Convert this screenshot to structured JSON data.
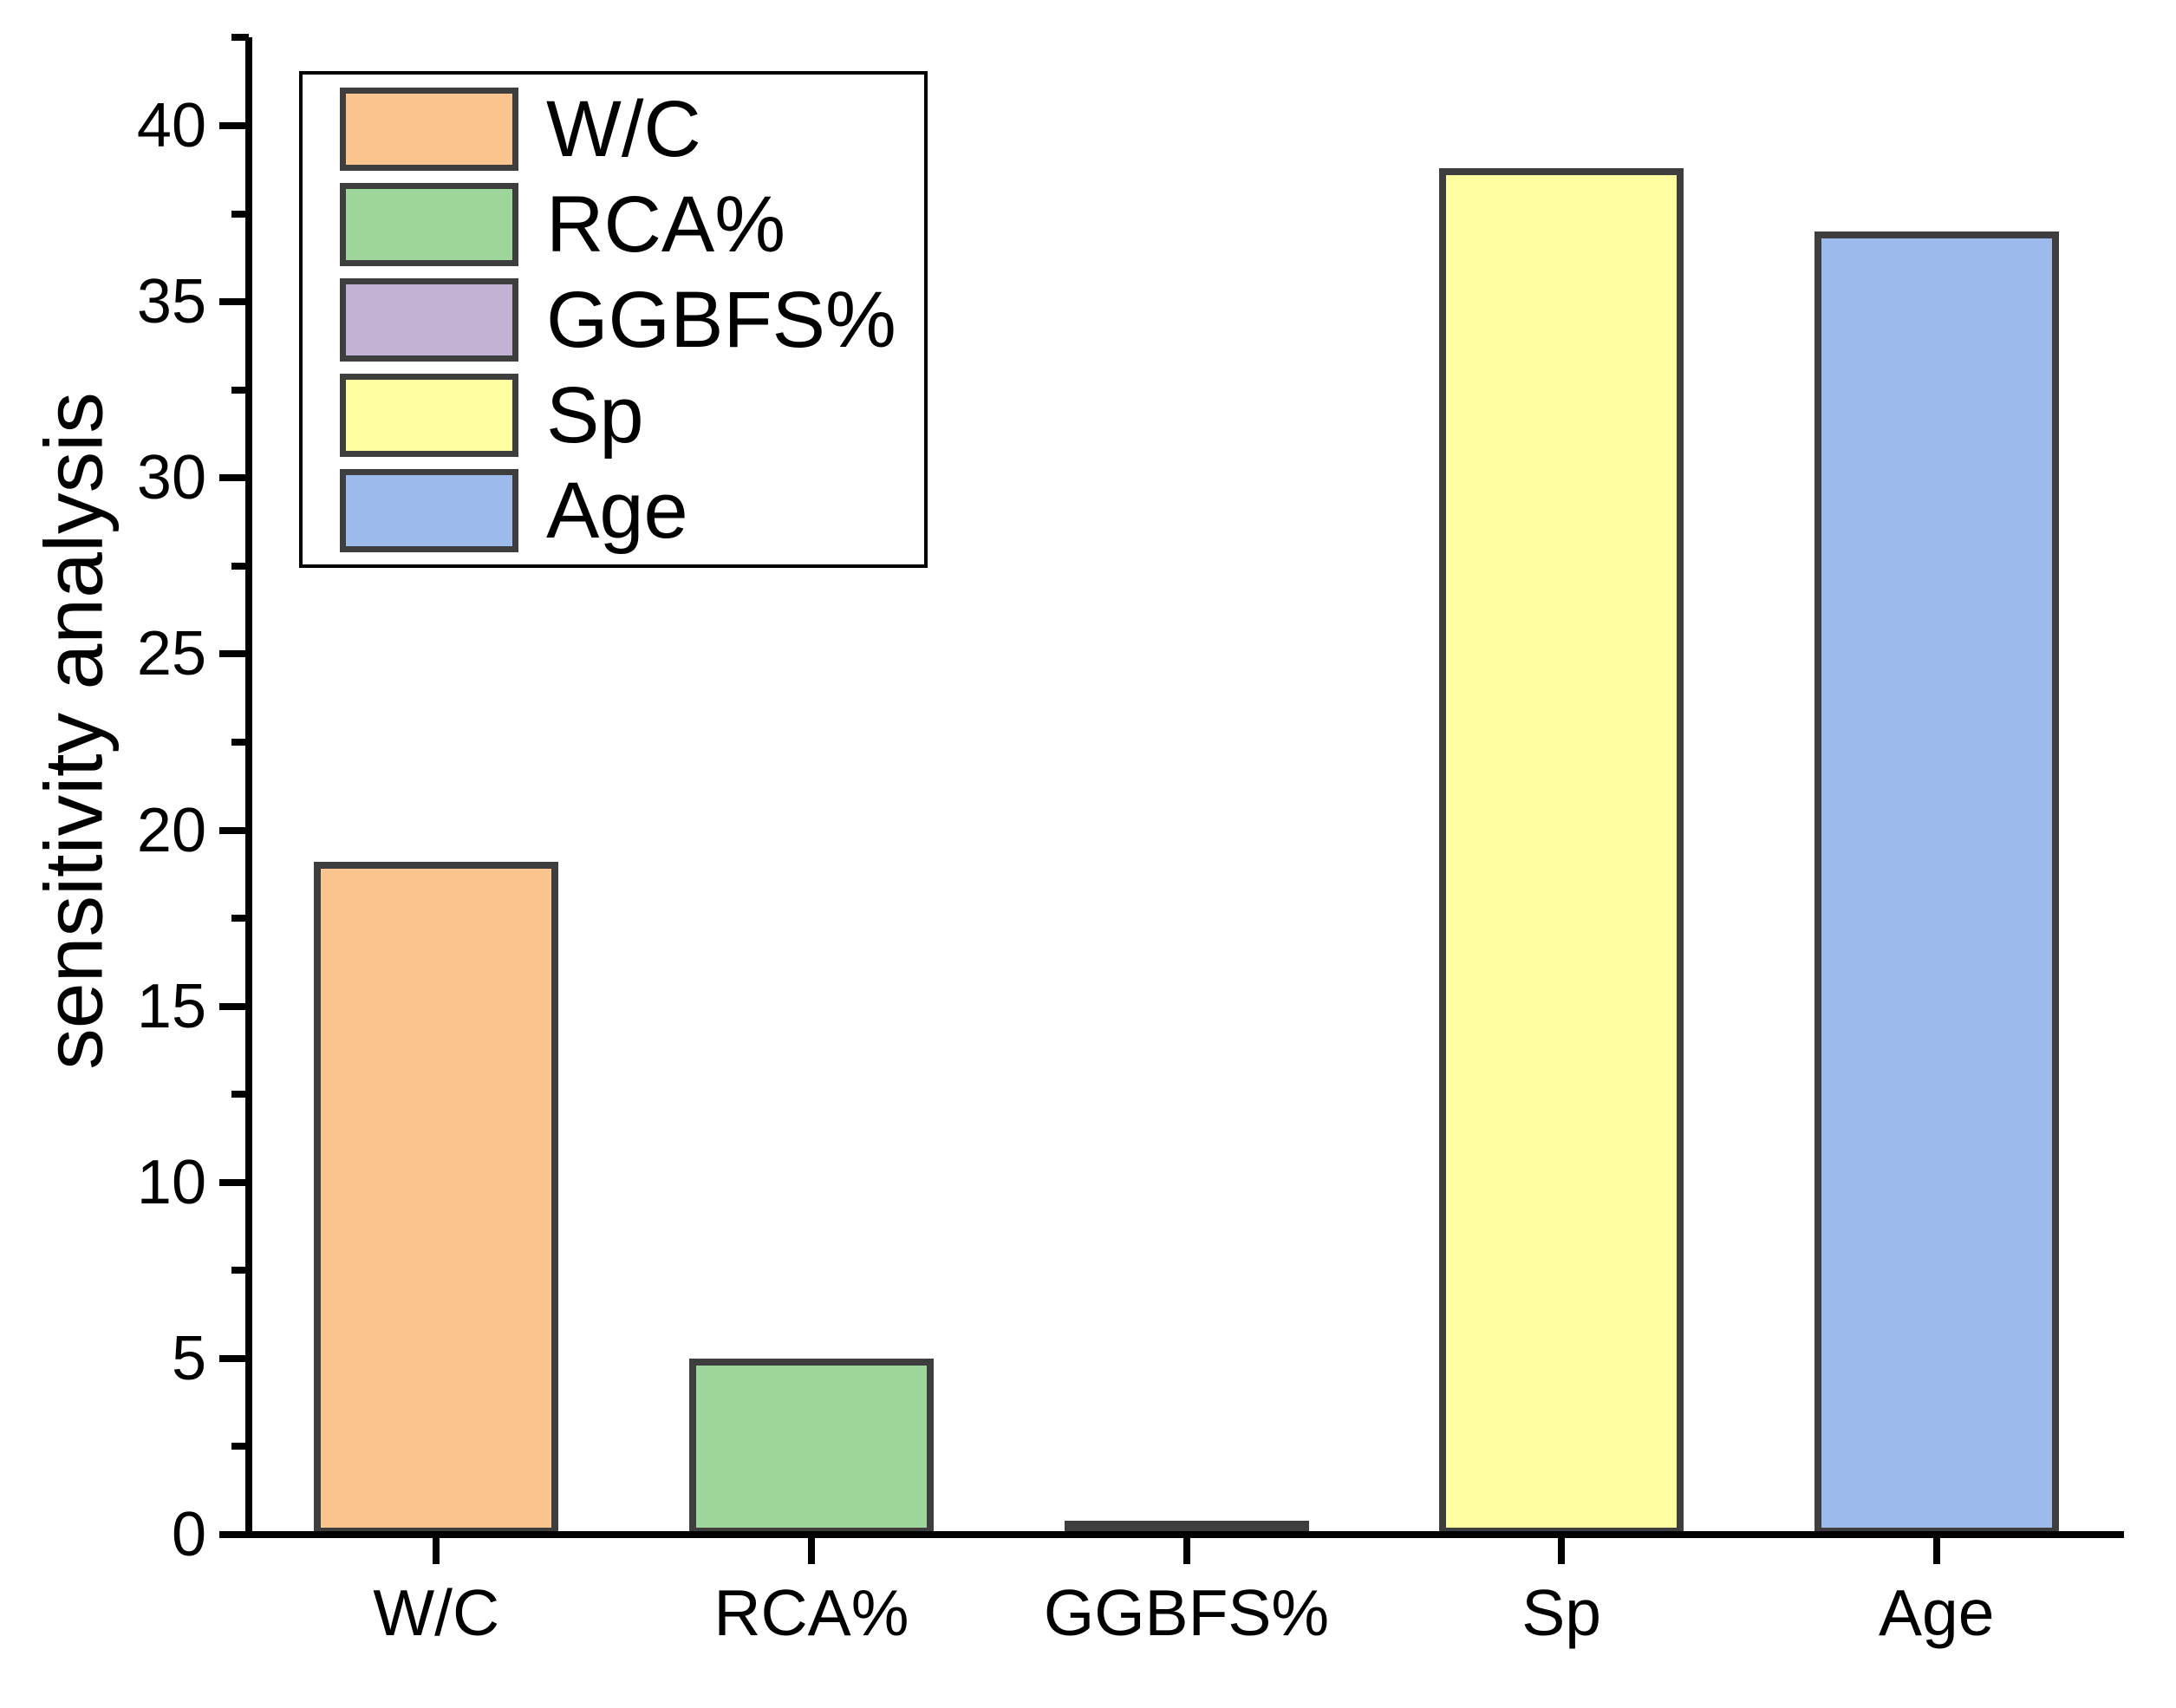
{
  "chart_data": {
    "type": "bar",
    "title": "",
    "xlabel": "",
    "ylabel": "sensitivity analysis",
    "categories": [
      "W/C",
      "RCA%",
      "GGBFS%",
      "Sp",
      "Age"
    ],
    "values": [
      19.1,
      5.0,
      0.4,
      38.8,
      37.0
    ],
    "bar_colors": [
      "#FAC58E",
      "#9DD59A",
      "#C4B2D5",
      "#FEFD9F",
      "#9CBAEB"
    ],
    "bar_border_color": "#3E3E3E",
    "axis_color": "#000000",
    "ylim": [
      0,
      42.5
    ],
    "yticks_major": [
      0,
      5,
      10,
      15,
      20,
      25,
      30,
      35,
      40
    ],
    "ytick_labels": [
      "0",
      "5",
      "10",
      "15",
      "20",
      "25",
      "30",
      "35",
      "40"
    ],
    "yticks_minor": [
      2.5,
      7.5,
      12.5,
      17.5,
      22.5,
      27.5,
      32.5,
      37.5,
      42.5
    ],
    "grid": "off",
    "legend_position": "upper-left-inside",
    "legend": [
      {
        "label": "W/C",
        "color": "#FAC58E"
      },
      {
        "label": "RCA%",
        "color": "#9DD59A"
      },
      {
        "label": "GGBFS%",
        "color": "#C4B2D5"
      },
      {
        "label": "Sp",
        "color": "#FEFD9F"
      },
      {
        "label": "Age",
        "color": "#9CBAEB"
      }
    ]
  }
}
